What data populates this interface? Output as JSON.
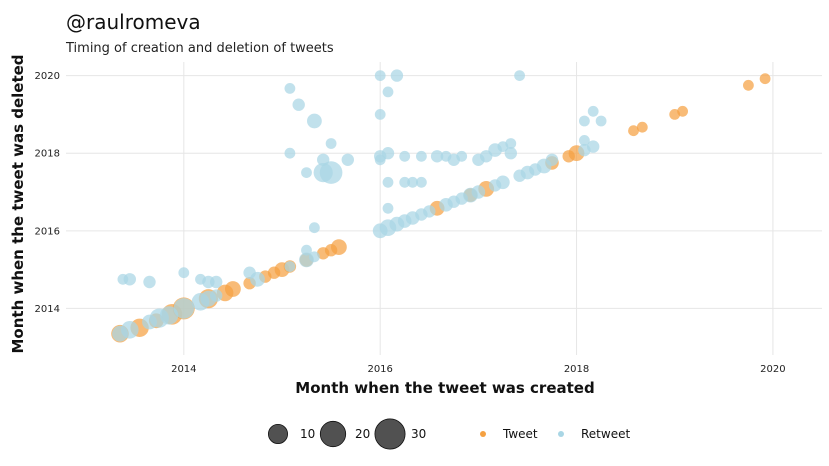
{
  "title": "@raulromeva",
  "subtitle": "Timing of creation and deletion of tweets",
  "chart_data": {
    "type": "scatter",
    "xlabel": "Month when the tweet was created",
    "ylabel": "Month when the tweet was deleted",
    "xlim": [
      2012.8,
      2020.5
    ],
    "ylim": [
      2012.8,
      2020.35
    ],
    "xticks": [
      2014,
      2016,
      2018,
      2020
    ],
    "yticks": [
      2014,
      2016,
      2018,
      2020
    ],
    "grid": true,
    "legend_position": "bottom",
    "size_legend": {
      "values": [
        10,
        20,
        30
      ],
      "labels": [
        "10",
        "20",
        "30"
      ]
    },
    "series": [
      {
        "name": "Tweet",
        "color": "#f5a142",
        "points": [
          [
            2013.35,
            2013.35,
            8
          ],
          [
            2013.55,
            2013.5,
            9
          ],
          [
            2013.72,
            2013.68,
            5
          ],
          [
            2013.88,
            2013.85,
            12
          ],
          [
            2014.0,
            2014.0,
            14
          ],
          [
            2014.25,
            2014.25,
            10
          ],
          [
            2014.42,
            2014.4,
            7
          ],
          [
            2014.5,
            2014.5,
            6
          ],
          [
            2014.67,
            2014.65,
            3
          ],
          [
            2014.83,
            2014.82,
            3
          ],
          [
            2014.92,
            2014.92,
            3
          ],
          [
            2015.0,
            2015.0,
            5
          ],
          [
            2015.08,
            2015.08,
            3
          ],
          [
            2015.25,
            2015.25,
            4
          ],
          [
            2015.42,
            2015.42,
            3
          ],
          [
            2015.5,
            2015.5,
            3
          ],
          [
            2015.58,
            2015.58,
            6
          ],
          [
            2016.58,
            2016.58,
            5
          ],
          [
            2016.92,
            2016.92,
            4
          ],
          [
            2017.08,
            2017.08,
            6
          ],
          [
            2017.75,
            2017.75,
            4
          ],
          [
            2017.92,
            2017.92,
            3
          ],
          [
            2018.0,
            2018.0,
            6
          ],
          [
            2018.58,
            2018.58,
            2
          ],
          [
            2018.67,
            2018.67,
            2
          ],
          [
            2019.0,
            2019.0,
            2
          ],
          [
            2019.08,
            2019.08,
            2
          ],
          [
            2019.75,
            2019.75,
            2
          ],
          [
            2019.92,
            2019.92,
            2
          ]
        ]
      },
      {
        "name": "Retweet",
        "color": "#a9d6e5",
        "points": [
          [
            2013.35,
            2013.35,
            6
          ],
          [
            2013.45,
            2013.45,
            8
          ],
          [
            2013.65,
            2013.65,
            5
          ],
          [
            2013.75,
            2013.75,
            10
          ],
          [
            2013.85,
            2013.82,
            9
          ],
          [
            2014.0,
            2014.0,
            12
          ],
          [
            2014.17,
            2014.17,
            8
          ],
          [
            2014.25,
            2014.25,
            6
          ],
          [
            2014.33,
            2014.33,
            3
          ],
          [
            2014.75,
            2014.75,
            5
          ],
          [
            2015.25,
            2015.25,
            5
          ],
          [
            2015.33,
            2015.33,
            2
          ],
          [
            2013.38,
            2014.75,
            2
          ],
          [
            2013.45,
            2014.75,
            3
          ],
          [
            2013.65,
            2014.68,
            3
          ],
          [
            2014.0,
            2014.92,
            2
          ],
          [
            2014.17,
            2014.75,
            2
          ],
          [
            2014.25,
            2014.68,
            3
          ],
          [
            2014.33,
            2014.68,
            3
          ],
          [
            2014.67,
            2014.92,
            3
          ],
          [
            2015.08,
            2015.08,
            2
          ],
          [
            2015.25,
            2015.5,
            2
          ],
          [
            2015.33,
            2016.08,
            2
          ],
          [
            2015.08,
            2018.0,
            2
          ],
          [
            2015.08,
            2019.67,
            2
          ],
          [
            2015.17,
            2019.25,
            3
          ],
          [
            2015.25,
            2017.5,
            2
          ],
          [
            2015.33,
            2018.83,
            5
          ],
          [
            2015.42,
            2017.83,
            3
          ],
          [
            2015.42,
            2017.5,
            10
          ],
          [
            2015.5,
            2017.5,
            15
          ],
          [
            2015.5,
            2018.25,
            2
          ],
          [
            2015.67,
            2017.83,
            3
          ],
          [
            2016.0,
            2016.0,
            5
          ],
          [
            2016.08,
            2016.08,
            7
          ],
          [
            2016.17,
            2016.17,
            5
          ],
          [
            2016.25,
            2016.25,
            4
          ],
          [
            2016.33,
            2016.33,
            4
          ],
          [
            2016.42,
            2016.42,
            3
          ],
          [
            2016.5,
            2016.5,
            3
          ],
          [
            2016.67,
            2016.67,
            4
          ],
          [
            2016.75,
            2016.75,
            3
          ],
          [
            2016.83,
            2016.83,
            3
          ],
          [
            2016.92,
            2016.92,
            5
          ],
          [
            2017.0,
            2017.0,
            4
          ],
          [
            2017.17,
            2017.17,
            3
          ],
          [
            2017.25,
            2017.25,
            4
          ],
          [
            2017.42,
            2017.42,
            3
          ],
          [
            2017.5,
            2017.5,
            4
          ],
          [
            2017.58,
            2017.58,
            3
          ],
          [
            2017.67,
            2017.67,
            5
          ],
          [
            2018.08,
            2018.08,
            3
          ],
          [
            2018.17,
            2018.17,
            3
          ],
          [
            2016.0,
            2020.0,
            2
          ],
          [
            2016.0,
            2019.0,
            2
          ],
          [
            2016.0,
            2017.92,
            3
          ],
          [
            2016.0,
            2017.83,
            2
          ],
          [
            2016.08,
            2019.58,
            2
          ],
          [
            2016.08,
            2018.0,
            3
          ],
          [
            2016.08,
            2017.25,
            2
          ],
          [
            2016.08,
            2016.58,
            2
          ],
          [
            2016.17,
            2020.0,
            3
          ],
          [
            2016.25,
            2017.92,
            2
          ],
          [
            2016.25,
            2017.25,
            2
          ],
          [
            2016.33,
            2017.25,
            2
          ],
          [
            2016.42,
            2017.92,
            2
          ],
          [
            2016.42,
            2017.25,
            2
          ],
          [
            2016.58,
            2017.92,
            3
          ],
          [
            2016.67,
            2017.92,
            2
          ],
          [
            2016.75,
            2017.83,
            3
          ],
          [
            2016.83,
            2017.92,
            2
          ],
          [
            2017.0,
            2017.83,
            3
          ],
          [
            2017.08,
            2017.92,
            3
          ],
          [
            2017.17,
            2018.08,
            4
          ],
          [
            2017.25,
            2018.17,
            2
          ],
          [
            2017.33,
            2018.0,
            3
          ],
          [
            2017.33,
            2018.25,
            2
          ],
          [
            2017.42,
            2020.0,
            2
          ],
          [
            2017.75,
            2017.83,
            3
          ],
          [
            2018.08,
            2018.33,
            2
          ],
          [
            2018.08,
            2018.83,
            2
          ],
          [
            2018.17,
            2019.08,
            2
          ],
          [
            2018.25,
            2018.83,
            2
          ]
        ]
      }
    ]
  }
}
